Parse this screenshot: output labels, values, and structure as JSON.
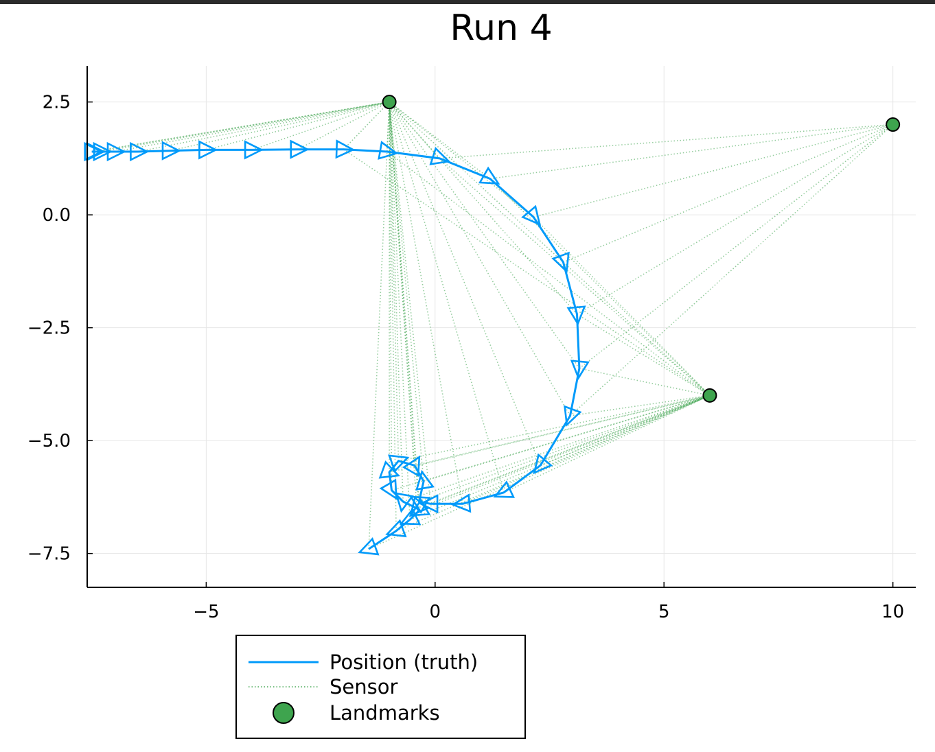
{
  "chart_data": {
    "type": "line",
    "title": "Run 4",
    "xlabel": "",
    "ylabel": "",
    "xlim": [
      -7.6,
      10.5
    ],
    "ylim": [
      -8.25,
      3.3
    ],
    "x_ticks": [
      -5,
      0,
      5,
      10
    ],
    "x_tick_labels": [
      "−5",
      "0",
      "5",
      "10"
    ],
    "y_ticks": [
      2.5,
      0.0,
      -2.5,
      -5.0,
      -7.5
    ],
    "y_tick_labels": [
      "2.5",
      "0.0",
      "−2.5",
      "−5.0",
      "−7.5"
    ],
    "grid": true,
    "legend_position": "below the plot, left",
    "colors": {
      "truth": "#009AFA",
      "sensor": "#3EA44E",
      "landmark": "#3EA44E",
      "axis": "#000000",
      "grid": "#e6e6e6"
    },
    "series": [
      {
        "name": "Position (truth)",
        "style": "solid line with triangle heading markers",
        "x": [
          -7.5,
          -7.45,
          -7.3,
          -7.0,
          -6.5,
          -5.8,
          -5.0,
          -4.0,
          -3.0,
          -2.0,
          -1.05,
          0.1,
          1.2,
          2.15,
          2.8,
          3.1,
          3.15,
          2.95,
          2.3,
          1.5,
          0.6,
          -0.1,
          -0.35,
          -0.25,
          -0.45,
          -0.8,
          -1.0,
          -0.95,
          -0.7,
          -0.4,
          -0.35,
          -0.55,
          -0.85,
          -1.45
        ],
        "y": [
          1.4,
          1.4,
          1.4,
          1.4,
          1.4,
          1.42,
          1.44,
          1.44,
          1.45,
          1.45,
          1.4,
          1.25,
          0.8,
          -0.05,
          -1.05,
          -2.2,
          -3.4,
          -4.45,
          -5.55,
          -6.15,
          -6.4,
          -6.4,
          -6.35,
          -5.9,
          -5.55,
          -5.45,
          -5.7,
          -6.1,
          -6.35,
          -6.5,
          -6.55,
          -6.75,
          -7.0,
          -7.4
        ],
        "headings_deg": [
          0,
          0,
          0,
          0,
          0,
          0,
          0,
          0,
          0,
          -2,
          -10,
          -18,
          -30,
          -50,
          -70,
          -85,
          -95,
          -110,
          -130,
          -155,
          -175,
          180,
          150,
          100,
          60,
          20,
          -20,
          -60,
          -100,
          -130,
          -150,
          -155,
          -160,
          -160
        ]
      },
      {
        "name": "Sensor",
        "style": "dotted lines from position to landmarks"
      },
      {
        "name": "Landmarks",
        "style": "markers",
        "x": [
          -1,
          10,
          6
        ],
        "y": [
          2.5,
          2.0,
          -4.0
        ]
      }
    ]
  }
}
